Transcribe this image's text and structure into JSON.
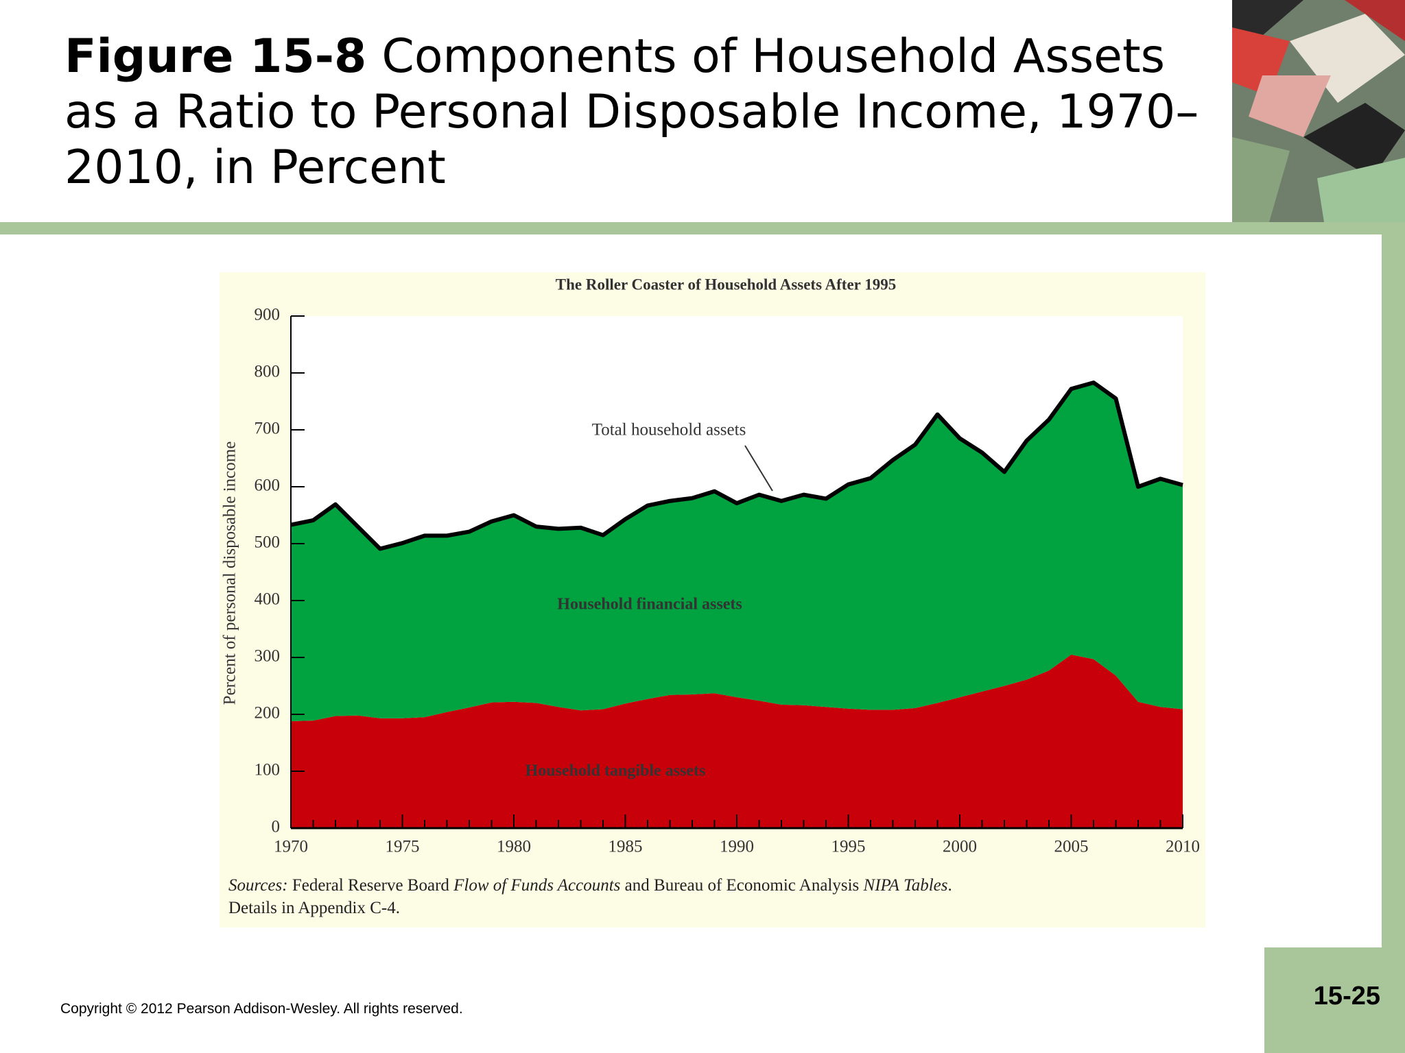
{
  "figure_label": "Figure 15-8",
  "figure_title": "Components of Household Assets as a Ratio to Personal Disposable Income, 1970–2010, in Percent",
  "copyright": "Copyright © 2012 Pearson Addison-Wesley. All rights reserved.",
  "page_number": "15-25",
  "chart_data": {
    "type": "stacked_area",
    "title": "The Roller Coaster of Household Assets After 1995",
    "y_label": "Percent of personal disposable income",
    "annotations": [
      "Total household assets",
      "Household financial assets",
      "Household tangible assets"
    ],
    "sources": [
      "Sources:",
      "Federal Reserve Board",
      "Flow of Funds Accounts",
      "and Bureau of Economic Analysis",
      "NIPA",
      "Tables",
      ". Details in Appendix C-4."
    ],
    "x": [
      1970,
      1971,
      1972,
      1973,
      1974,
      1975,
      1976,
      1977,
      1978,
      1979,
      1980,
      1981,
      1982,
      1983,
      1984,
      1985,
      1986,
      1987,
      1988,
      1989,
      1990,
      1991,
      1992,
      1993,
      1994,
      1995,
      1996,
      1997,
      1998,
      1999,
      2000,
      2001,
      2002,
      2003,
      2004,
      2005,
      2006,
      2007,
      2008,
      2009,
      2010
    ],
    "series": [
      {
        "name": "Household tangible assets",
        "color": "#c8000a",
        "values": [
          188,
          189,
          197,
          198,
          193,
          193,
          195,
          204,
          212,
          221,
          222,
          220,
          213,
          207,
          209,
          219,
          227,
          234,
          235,
          237,
          230,
          224,
          217,
          216,
          213,
          210,
          208,
          208,
          211,
          220,
          230,
          240,
          250,
          261,
          277,
          305,
          297,
          268,
          222,
          213,
          209
        ]
      },
      {
        "name": "Household financial assets",
        "color": "#00a33f",
        "values": [
          345,
          352,
          372,
          332,
          298,
          308,
          319,
          310,
          309,
          318,
          328,
          310,
          313,
          321,
          306,
          324,
          340,
          341,
          345,
          355,
          341,
          362,
          358,
          370,
          366,
          394,
          407,
          439,
          463,
          507,
          455,
          420,
          376,
          420,
          441,
          467,
          486,
          487,
          378,
          401,
          394
        ]
      }
    ],
    "xlim": [
      1970,
      2010
    ],
    "xticks": [
      1970,
      1975,
      1980,
      1985,
      1990,
      1995,
      2000,
      2005,
      2010
    ],
    "ylim": [
      0,
      900
    ],
    "yticks": [
      0,
      100,
      200,
      300,
      400,
      500,
      600,
      700,
      800,
      900
    ]
  }
}
